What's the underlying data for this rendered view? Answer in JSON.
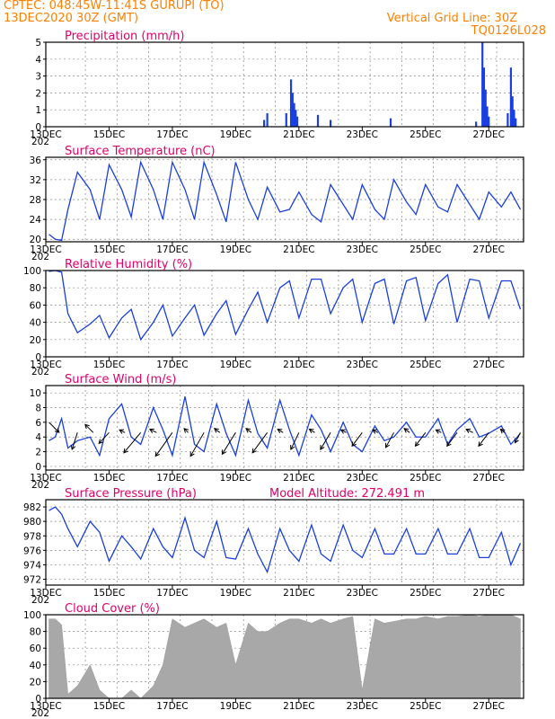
{
  "header": {
    "line1": "CPTEC:  048:45W-11:41S   GURUPI (TO)",
    "line2": "13DEC2020 30Z (GMT)",
    "right1": "Vertical Grid Line: 30Z",
    "right2": "TQ0126L028"
  },
  "colors": {
    "header": "#ff8000",
    "title": "#e0006a",
    "series": "#1a3fe0",
    "cloud": "#a8a8a8",
    "arrow": "#000000"
  },
  "x_labels": [
    "13DEC",
    "15DEC",
    "17DEC",
    "19DEC",
    "21DEC",
    "23DEC",
    "25DEC",
    "27DEC"
  ],
  "year_fragment": "202",
  "chart_data": [
    {
      "type": "bar",
      "title": "Precipitation (mm/h)",
      "ylim": [
        0,
        5
      ],
      "yticks": [
        "0",
        "1",
        "2",
        "3",
        "4",
        "5"
      ],
      "x_day": [
        19.9,
        20.0,
        20.6,
        20.75,
        20.8,
        20.85,
        20.9,
        20.95,
        21.6,
        22.0,
        23.9,
        26.6,
        26.8,
        26.85,
        26.9,
        26.95,
        27.0,
        27.6,
        27.7,
        27.75,
        27.8,
        27.85
      ],
      "values": [
        0.4,
        0.8,
        0.8,
        2.8,
        2.0,
        1.4,
        1.0,
        0.6,
        0.7,
        0.4,
        0.5,
        0.3,
        5.0,
        3.5,
        2.2,
        1.2,
        0.6,
        0.8,
        3.5,
        1.8,
        1.0,
        0.5
      ]
    },
    {
      "type": "line",
      "title": "Surface Temperature (nC)",
      "ylim": [
        19.5,
        36.5
      ],
      "yticks": [
        "20",
        "24",
        "28",
        "32",
        "36"
      ],
      "x_day": [
        13.1,
        13.3,
        13.5,
        13.7,
        14.0,
        14.4,
        14.7,
        15.0,
        15.4,
        15.7,
        16.0,
        16.4,
        16.7,
        17.0,
        17.4,
        17.7,
        18.0,
        18.4,
        18.7,
        19.0,
        19.4,
        19.7,
        20.0,
        20.4,
        20.7,
        21.0,
        21.4,
        21.7,
        22.0,
        22.4,
        22.7,
        23.0,
        23.4,
        23.7,
        24.0,
        24.4,
        24.7,
        25.0,
        25.4,
        25.7,
        26.0,
        26.4,
        26.7,
        27.0,
        27.4,
        27.7,
        28.0
      ],
      "values": [
        21.0,
        20.0,
        19.8,
        26.0,
        33.5,
        30.0,
        24.0,
        35.0,
        30.0,
        24.5,
        35.5,
        30.0,
        24.0,
        35.5,
        30.0,
        24.0,
        35.5,
        29.0,
        23.5,
        35.5,
        28.0,
        24.0,
        30.5,
        25.5,
        26.0,
        29.5,
        25.0,
        23.5,
        31.0,
        27.0,
        24.0,
        31.0,
        26.0,
        24.0,
        32.0,
        27.5,
        25.0,
        31.0,
        26.5,
        25.5,
        31.0,
        27.0,
        24.0,
        29.5,
        26.5,
        29.5,
        26.0
      ]
    },
    {
      "type": "line",
      "title": "Relative Humidity (%)",
      "ylim": [
        0,
        100
      ],
      "yticks": [
        "0",
        "20",
        "40",
        "60",
        "80",
        "100"
      ],
      "x_day": [
        13.1,
        13.3,
        13.5,
        13.7,
        14.0,
        14.4,
        14.7,
        15.0,
        15.4,
        15.7,
        16.0,
        16.4,
        16.7,
        17.0,
        17.4,
        17.7,
        18.0,
        18.4,
        18.7,
        19.0,
        19.4,
        19.7,
        20.0,
        20.4,
        20.7,
        21.0,
        21.4,
        21.7,
        22.0,
        22.4,
        22.7,
        23.0,
        23.4,
        23.7,
        24.0,
        24.4,
        24.7,
        25.0,
        25.4,
        25.7,
        26.0,
        26.4,
        26.7,
        27.0,
        27.4,
        27.7,
        28.0
      ],
      "values": [
        99.0,
        100.0,
        98.0,
        50.0,
        28.0,
        38.0,
        48.0,
        22.0,
        45.0,
        55.0,
        20.0,
        40.0,
        60.0,
        24.0,
        45.0,
        60.0,
        25.0,
        50.0,
        65.0,
        26.0,
        55.0,
        75.0,
        40.0,
        80.0,
        88.0,
        45.0,
        90.0,
        90.0,
        50.0,
        80.0,
        90.0,
        40.0,
        85.0,
        90.0,
        38.0,
        88.0,
        92.0,
        42.0,
        85.0,
        95.0,
        40.0,
        90.0,
        88.0,
        45.0,
        88.0,
        88.0,
        55.0
      ]
    },
    {
      "type": "line",
      "title": "Surface Wind (m/s)",
      "ylim": [
        -0.5,
        11
      ],
      "yticks": [
        "0",
        "2",
        "4",
        "6",
        "8",
        "10"
      ],
      "x_day": [
        13.1,
        13.3,
        13.5,
        13.7,
        14.0,
        14.4,
        14.7,
        15.0,
        15.4,
        15.7,
        16.0,
        16.4,
        16.7,
        17.0,
        17.4,
        17.7,
        18.0,
        18.4,
        18.7,
        19.0,
        19.4,
        19.7,
        20.0,
        20.4,
        20.7,
        21.0,
        21.4,
        21.7,
        22.0,
        22.4,
        22.7,
        23.0,
        23.4,
        23.7,
        24.0,
        24.4,
        24.7,
        25.0,
        25.4,
        25.7,
        26.0,
        26.4,
        26.7,
        27.0,
        27.4,
        27.7,
        28.0
      ],
      "values": [
        3.5,
        4.0,
        6.5,
        2.5,
        3.5,
        4.0,
        1.5,
        6.5,
        8.5,
        4.0,
        3.0,
        8.0,
        5.0,
        1.5,
        9.5,
        3.0,
        2.0,
        8.5,
        4.5,
        1.5,
        9.0,
        4.5,
        2.5,
        9.0,
        5.0,
        1.5,
        7.0,
        5.0,
        2.0,
        6.0,
        3.0,
        2.0,
        5.5,
        3.5,
        4.0,
        6.0,
        4.0,
        4.0,
        6.5,
        3.0,
        5.0,
        6.5,
        4.0,
        4.5,
        5.5,
        3.0,
        4.5
      ],
      "arrows": {
        "x_day": [
          13.1,
          14.0,
          14.5,
          15.0,
          15.5,
          16.0,
          16.5,
          17.0,
          17.5,
          18.0,
          18.5,
          19.0,
          19.5,
          20.0,
          20.5,
          21.0,
          21.5,
          22.0,
          22.5,
          23.0,
          23.5,
          24.0,
          24.5,
          25.0,
          25.5,
          26.0,
          26.5,
          27.0,
          27.5,
          28.0
        ],
        "base": [
          6.0,
          4.6,
          4.6,
          4.6,
          4.6,
          4.6,
          4.6,
          4.6,
          4.6,
          4.6,
          4.6,
          4.6,
          4.6,
          4.6,
          4.6,
          4.6,
          4.6,
          4.6,
          4.6,
          4.6,
          4.6,
          4.6,
          4.6,
          4.6,
          4.6,
          4.6,
          4.6,
          4.6,
          4.6,
          4.6
        ],
        "u": [
          1.5,
          -0.8,
          -1.2,
          -1.5,
          -0.8,
          -2.5,
          -1.0,
          -2.5,
          -0.6,
          -2.0,
          -0.8,
          -2.0,
          -0.8,
          -2.2,
          -0.8,
          -1.2,
          -0.8,
          -1.5,
          -0.8,
          -1.5,
          -0.8,
          -1.2,
          -0.8,
          -1.5,
          -0.8,
          -1.5,
          -1.0,
          -1.5,
          -0.6,
          -0.8
        ],
        "v": [
          -1.5,
          -2.5,
          1.2,
          -1.6,
          0.4,
          -3.0,
          0.5,
          -3.5,
          0.6,
          -3.5,
          0.6,
          -3.2,
          0.6,
          -3.0,
          0.5,
          -2.5,
          0.5,
          -2.5,
          0.4,
          -2.0,
          0.4,
          -2.2,
          0.6,
          -2.0,
          0.4,
          -2.0,
          0.5,
          -2.0,
          0.5,
          -1.5
        ]
      }
    },
    {
      "type": "line",
      "title": "Surface Pressure (hPa)",
      "annotation": "Model Altitude: 272.491 m",
      "ylim": [
        971.2,
        983.0
      ],
      "yticks": [
        "972",
        "974",
        "976",
        "978",
        "980",
        "982"
      ],
      "x_day": [
        13.1,
        13.3,
        13.5,
        13.7,
        14.0,
        14.4,
        14.7,
        15.0,
        15.4,
        15.7,
        16.0,
        16.4,
        16.7,
        17.0,
        17.4,
        17.7,
        18.0,
        18.4,
        18.7,
        19.0,
        19.4,
        19.7,
        20.0,
        20.4,
        20.7,
        21.0,
        21.4,
        21.7,
        22.0,
        22.4,
        22.7,
        23.0,
        23.4,
        23.7,
        24.0,
        24.4,
        24.7,
        25.0,
        25.4,
        25.7,
        26.0,
        26.4,
        26.7,
        27.0,
        27.4,
        27.7,
        28.0
      ],
      "values": [
        981.5,
        982.0,
        981.0,
        979.0,
        976.5,
        980.0,
        978.5,
        974.5,
        978.0,
        976.5,
        974.8,
        979.0,
        976.5,
        975.0,
        980.5,
        976.0,
        975.0,
        980.0,
        975.0,
        974.8,
        979.0,
        975.5,
        973.0,
        979.0,
        976.0,
        974.5,
        979.5,
        975.5,
        974.5,
        979.5,
        976.0,
        975.0,
        979.0,
        975.5,
        975.5,
        979.0,
        975.5,
        975.5,
        979.0,
        975.5,
        975.5,
        979.0,
        975.0,
        975.0,
        978.5,
        974.0,
        977.0
      ]
    },
    {
      "type": "area",
      "title": "Cloud Cover (%)",
      "ylim": [
        0,
        100
      ],
      "yticks": [
        "0",
        "20",
        "40",
        "60",
        "80",
        "100"
      ],
      "x_day": [
        13.1,
        13.3,
        13.5,
        13.7,
        14.0,
        14.4,
        14.7,
        15.0,
        15.4,
        15.7,
        16.0,
        16.4,
        16.7,
        17.0,
        17.4,
        17.7,
        18.0,
        18.4,
        18.7,
        19.0,
        19.4,
        19.7,
        20.0,
        20.4,
        20.7,
        21.0,
        21.4,
        21.7,
        22.0,
        22.4,
        22.7,
        23.0,
        23.4,
        23.7,
        24.0,
        24.4,
        24.7,
        25.0,
        25.4,
        25.7,
        26.0,
        26.4,
        26.7,
        27.0,
        27.4,
        27.7,
        28.0
      ],
      "values": [
        95.0,
        95.0,
        88.0,
        5.0,
        15.0,
        40.0,
        10.0,
        0.0,
        0.0,
        10.0,
        0.0,
        15.0,
        40.0,
        95.0,
        85.0,
        90.0,
        95.0,
        85.0,
        90.0,
        40.0,
        90.0,
        80.0,
        80.0,
        90.0,
        95.0,
        95.0,
        90.0,
        95.0,
        90.0,
        95.0,
        98.0,
        10.0,
        95.0,
        90.0,
        92.0,
        95.0,
        95.0,
        98.0,
        95.0,
        98.0,
        98.0,
        100.0,
        98.0,
        100.0,
        100.0,
        100.0,
        95.0
      ]
    }
  ]
}
